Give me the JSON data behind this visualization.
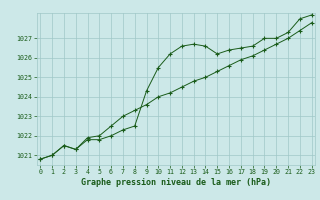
{
  "xlabel": "Graphe pression niveau de la mer (hPa)",
  "bg_color": "#cce8e8",
  "line_color": "#1a5c1a",
  "grid_color": "#a0c8c8",
  "hours": [
    0,
    1,
    2,
    3,
    4,
    5,
    6,
    7,
    8,
    9,
    10,
    11,
    12,
    13,
    14,
    15,
    16,
    17,
    18,
    19,
    20,
    21,
    22,
    23
  ],
  "series1": [
    1020.8,
    1021.0,
    1021.5,
    1021.3,
    1021.8,
    1021.8,
    1022.0,
    1022.3,
    1022.5,
    1024.3,
    1025.5,
    1026.2,
    1026.6,
    1026.7,
    1026.6,
    1026.2,
    1026.4,
    1026.5,
    1026.6,
    1027.0,
    1027.0,
    1027.3,
    1028.0,
    1028.2
  ],
  "series2": [
    1020.8,
    1021.0,
    1021.5,
    1021.3,
    1021.9,
    1022.0,
    1022.5,
    1023.0,
    1023.3,
    1023.6,
    1024.0,
    1024.2,
    1024.5,
    1024.8,
    1025.0,
    1025.3,
    1025.6,
    1025.9,
    1026.1,
    1026.4,
    1026.7,
    1027.0,
    1027.4,
    1027.8
  ],
  "ylim": [
    1020.5,
    1028.3
  ],
  "yticks": [
    1021,
    1022,
    1023,
    1024,
    1025,
    1026,
    1027
  ],
  "xlim": [
    -0.3,
    23.3
  ],
  "xticks": [
    0,
    1,
    2,
    3,
    4,
    5,
    6,
    7,
    8,
    9,
    10,
    11,
    12,
    13,
    14,
    15,
    16,
    17,
    18,
    19,
    20,
    21,
    22,
    23
  ],
  "font_color": "#1a5c1a",
  "xlabel_fontsize": 6.0,
  "tick_fontsize": 4.8,
  "marker": "+"
}
